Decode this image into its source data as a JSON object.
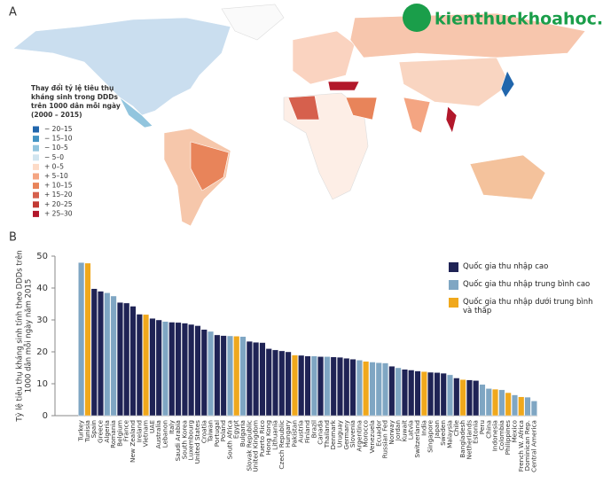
{
  "watermark": "kienthuckhoahoc.org",
  "map": {
    "panel_label": "A",
    "legend_title": [
      "Thay đổi tỷ lệ tiêu thụ",
      "kháng sinh trong DDDs",
      "trên 1000 dân mỗi ngày",
      "(2000 – 2015)"
    ],
    "legend": [
      {
        "label": "− 20–15",
        "color": "#2166ac"
      },
      {
        "label": "− 15–10",
        "color": "#4393c3"
      },
      {
        "label": "− 10–5",
        "color": "#92c5de"
      },
      {
        "label": "− 5–0",
        "color": "#d1e5f0"
      },
      {
        "label": "+ 0–5",
        "color": "#fddbc7"
      },
      {
        "label": "+ 5–10",
        "color": "#f4a582"
      },
      {
        "label": "+ 10–15",
        "color": "#e8845a"
      },
      {
        "label": "+ 15–20",
        "color": "#d6604d"
      },
      {
        "label": "+ 20–25",
        "color": "#c23a33"
      },
      {
        "label": "+ 25–30",
        "color": "#b2182b"
      }
    ]
  },
  "chart_data": {
    "type": "bar",
    "panel_label": "B",
    "ylabel": [
      "Tỷ lệ tiêu thụ kháng sinh tính theo DDDs trên",
      "1000 dân mỗi ngày năm 2015"
    ],
    "ylim": [
      0,
      50
    ],
    "yticks": [
      0,
      10,
      20,
      30,
      40,
      50
    ],
    "legend": [
      {
        "name": "Quốc gia thu nhập cao",
        "color": "#1f2355"
      },
      {
        "name": "Quốc gia thu nhập trung bình cao",
        "color": "#7fa6c3"
      },
      {
        "name": "Quốc gia thu nhập dưới trung bình và thấp",
        "color": "#f0a81c"
      }
    ],
    "categories": [
      "Turkey",
      "Tunisia",
      "Spain",
      "Greece",
      "Algeria",
      "Romania",
      "Belgium",
      "France",
      "New Zealand",
      "Ireland",
      "Vietnam",
      "UAE",
      "Australia",
      "Lebanon",
      "Italy",
      "Saudi Arabia",
      "South Korea",
      "Luxembourg",
      "United States",
      "Croatia",
      "Taiwan",
      "Portugal",
      "Poland",
      "South Africa",
      "Egypt",
      "Bulgaria",
      "Slovak Republic",
      "United Kingdom",
      "Puerto Rico",
      "Hong Kong",
      "Lithuania",
      "Czech Republic",
      "Hungary",
      "Pakistan",
      "Austria",
      "Finland",
      "Brazil",
      "Canada",
      "Thailand",
      "Denmark",
      "Uruguay",
      "Germany",
      "Slovenia",
      "Argentina",
      "Morocco",
      "Venezuela",
      "Ecuador",
      "Russian Fed",
      "Norway",
      "Jordan",
      "Kuwait",
      "Latvia",
      "Switzerland",
      "India",
      "Singapore",
      "Japan",
      "Sweden",
      "Malaysia",
      "Chile",
      "Bangladesh",
      "Netherlands",
      "Estonia",
      "Peru",
      "China",
      "Indonesia",
      "Colombia",
      "Philippines",
      "Mexico",
      "French W. Africa",
      "Dominican Rep.",
      "Central America"
    ],
    "values": [
      48,
      47.8,
      39.8,
      39,
      38.5,
      37.5,
      35.5,
      35.3,
      34.3,
      31.8,
      31.7,
      30.5,
      30,
      29.5,
      29.3,
      29.2,
      29,
      28.6,
      28.2,
      27,
      26.4,
      25.3,
      25.1,
      25,
      24.9,
      24.8,
      23.3,
      23,
      22.9,
      21,
      20.6,
      20.3,
      20,
      19,
      18.9,
      18.7,
      18.7,
      18.5,
      18.5,
      18.4,
      18.3,
      18,
      17.7,
      17.4,
      17,
      16.8,
      16.6,
      16.5,
      15.5,
      15,
      14.5,
      14.3,
      14,
      13.8,
      13.6,
      13.5,
      13.3,
      12.8,
      11.8,
      11.3,
      11.2,
      11,
      9.8,
      8.5,
      8.3,
      8.1,
      7.2,
      6.5,
      5.9,
      5.8,
      4.6
    ],
    "groups": [
      1,
      2,
      0,
      0,
      1,
      1,
      0,
      0,
      0,
      0,
      2,
      0,
      0,
      1,
      0,
      0,
      0,
      0,
      0,
      0,
      1,
      0,
      0,
      1,
      2,
      1,
      0,
      0,
      0,
      0,
      0,
      0,
      0,
      2,
      0,
      0,
      1,
      0,
      1,
      0,
      0,
      0,
      0,
      1,
      2,
      1,
      1,
      1,
      0,
      1,
      0,
      0,
      0,
      2,
      0,
      0,
      0,
      1,
      0,
      2,
      0,
      0,
      1,
      1,
      2,
      1,
      2,
      1,
      2,
      1,
      1
    ]
  }
}
